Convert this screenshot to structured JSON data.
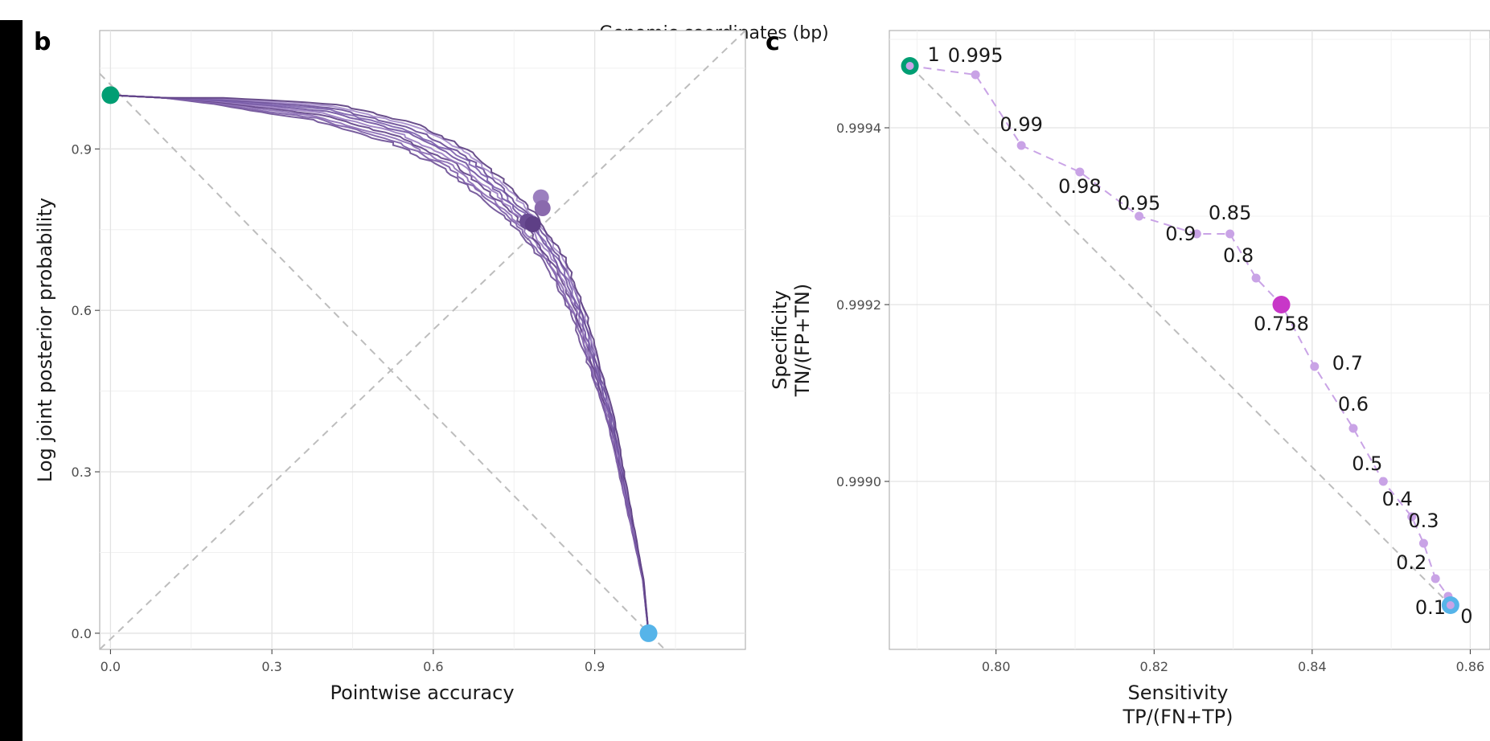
{
  "header": {
    "title": "Genomic coordinates (bp)"
  },
  "chart_data": [
    {
      "panel": "b",
      "type": "line",
      "xlabel": "Pointwise accuracy",
      "ylabel": "Log joint posterior probability",
      "xlim": [
        -0.02,
        1.18
      ],
      "ylim": [
        -0.03,
        1.12
      ],
      "xticks": [
        "0.0",
        "0.3",
        "0.6",
        "0.9"
      ],
      "xtick_values": [
        0,
        0.3,
        0.6,
        0.9
      ],
      "yticks": [
        "0.0",
        "0.3",
        "0.6",
        "0.9"
      ],
      "ytick_values": [
        0,
        0.3,
        0.6,
        0.9
      ],
      "grid": true,
      "reference_lines": [
        {
          "name": "diagonal",
          "from": [
            -0.02,
            -0.03
          ],
          "to": [
            1.18,
            1.12
          ],
          "style": "dashed"
        },
        {
          "name": "anti-diagonal",
          "from": [
            -0.02,
            1.04
          ],
          "to": [
            1.03,
            -0.03
          ],
          "style": "dashed"
        }
      ],
      "series_color": "#6a4c93",
      "series_count": 10,
      "curve_template": [
        [
          0,
          1
        ],
        [
          0.2,
          0.99
        ],
        [
          0.4,
          0.97
        ],
        [
          0.55,
          0.93
        ],
        [
          0.65,
          0.88
        ],
        [
          0.72,
          0.82
        ],
        [
          0.78,
          0.76
        ],
        [
          0.83,
          0.69
        ],
        [
          0.87,
          0.6
        ],
        [
          0.9,
          0.5
        ],
        [
          0.93,
          0.4
        ],
        [
          0.95,
          0.3
        ],
        [
          0.97,
          0.2
        ],
        [
          0.99,
          0.1
        ],
        [
          1,
          0
        ]
      ],
      "endpoints": [
        {
          "name": "start",
          "x": 0,
          "y": 1,
          "color": "#009e73"
        },
        {
          "name": "end",
          "x": 1,
          "y": 0,
          "color": "#56b4e9"
        }
      ],
      "crossing_points": [
        {
          "x": 0.8,
          "y": 0.81,
          "color": "#9b7fbf"
        },
        {
          "x": 0.803,
          "y": 0.79,
          "color": "#8a6aad"
        },
        {
          "x": 0.775,
          "y": 0.765,
          "color": "#6a4c93"
        },
        {
          "x": 0.785,
          "y": 0.76,
          "color": "#5e3f86"
        }
      ]
    },
    {
      "panel": "c",
      "type": "scatter",
      "xlabel": "Sensitivity",
      "xlabel2": "TP/(FN+TP)",
      "ylabel": "Specificity",
      "ylabel2": "TN/(FP+TN)",
      "xlim": [
        0.7865,
        0.8625
      ],
      "ylim": [
        0.99881,
        0.99951
      ],
      "xticks": [
        "0.80",
        "0.82",
        "0.84",
        "0.86"
      ],
      "xtick_values": [
        0.8,
        0.82,
        0.84,
        0.86
      ],
      "yticks": [
        "0.9990",
        "0.9992",
        "0.9994"
      ],
      "ytick_values": [
        0.999,
        0.9992,
        0.9994
      ],
      "grid": true,
      "line_color": "#c9a3e6",
      "points": [
        {
          "label": "1",
          "x": 0.7891,
          "y": 0.99947
        },
        {
          "label": "0.995",
          "x": 0.7974,
          "y": 0.99946
        },
        {
          "label": "0.99",
          "x": 0.8032,
          "y": 0.99938
        },
        {
          "label": "0.98",
          "x": 0.8106,
          "y": 0.99935
        },
        {
          "label": "0.95",
          "x": 0.8181,
          "y": 0.9993
        },
        {
          "label": "0.9",
          "x": 0.8254,
          "y": 0.99928
        },
        {
          "label": "0.85",
          "x": 0.8296,
          "y": 0.99928
        },
        {
          "label": "0.8",
          "x": 0.8329,
          "y": 0.99923
        },
        {
          "label": "0.758",
          "x": 0.8361,
          "y": 0.9992
        },
        {
          "label": "0.7",
          "x": 0.8403,
          "y": 0.99913
        },
        {
          "label": "0.6",
          "x": 0.8452,
          "y": 0.99906
        },
        {
          "label": "0.5",
          "x": 0.849,
          "y": 0.999
        },
        {
          "label": "0.4",
          "x": 0.8526,
          "y": 0.99896
        },
        {
          "label": "0.3",
          "x": 0.8541,
          "y": 0.99893
        },
        {
          "label": "0.2",
          "x": 0.8556,
          "y": 0.99889
        },
        {
          "label": "0.1",
          "x": 0.8572,
          "y": 0.99887
        },
        {
          "label": "0",
          "x": 0.8575,
          "y": 0.99886
        }
      ],
      "highlight": [
        {
          "label": "1",
          "color": "#009e73"
        },
        {
          "label": "0.758",
          "color": "#c837c8"
        },
        {
          "label": "0",
          "color": "#56b4e9"
        }
      ],
      "reference_line": {
        "from": [
          0.7891,
          0.99947
        ],
        "to": [
          0.8575,
          0.99886
        ],
        "style": "dashed"
      }
    }
  ]
}
